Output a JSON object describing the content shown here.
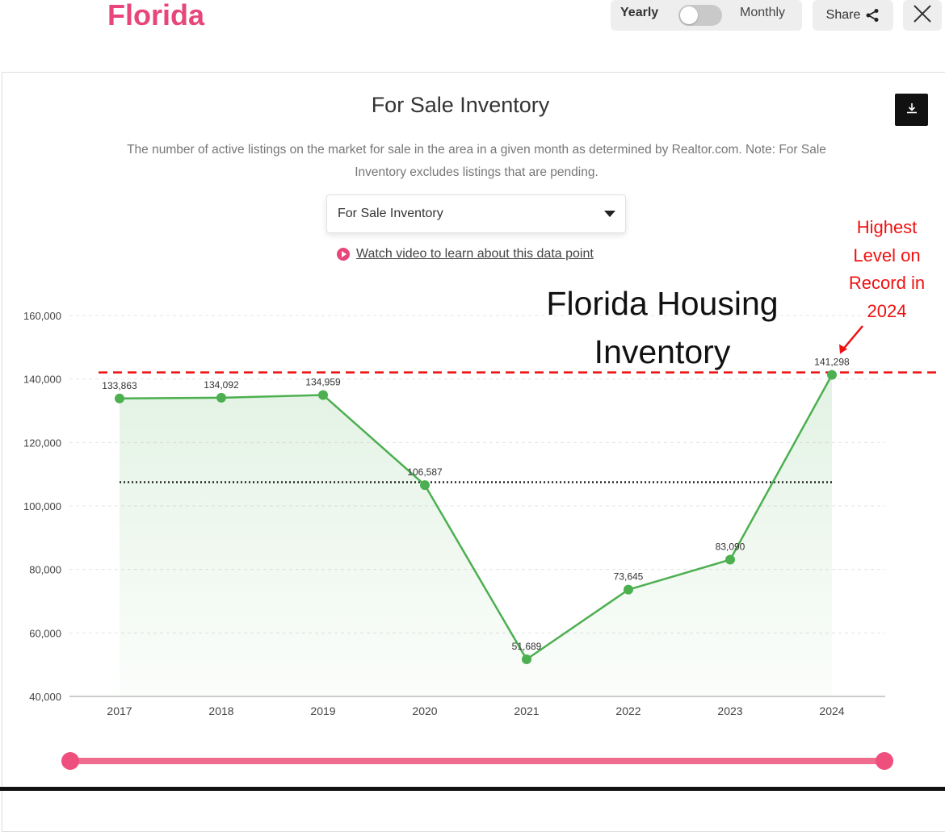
{
  "header": {
    "state_title": "Florida",
    "toggle_left": "Yearly",
    "toggle_right": "Monthly",
    "share_label": "Share"
  },
  "card": {
    "title": "For Sale Inventory",
    "description": "The number of active listings on the market for sale in the area in a given month as determined by Realtor.com. Note: For Sale Inventory excludes listings that are pending.",
    "select_value": "For Sale Inventory",
    "video_link": "Watch video to learn about this data point"
  },
  "annotations": {
    "overlay_title": "Florida Housing Inventory",
    "record_note": "Highest Level on Record in 2024"
  },
  "colors": {
    "brand": "#e8467a",
    "line": "#4caf50",
    "highlight": "#ee1111"
  },
  "chart_data": {
    "type": "line",
    "categories": [
      "2017",
      "2018",
      "2019",
      "2020",
      "2021",
      "2022",
      "2023",
      "2024"
    ],
    "values": [
      133863,
      134092,
      134959,
      106587,
      51689,
      73645,
      83090,
      141298
    ],
    "data_labels": [
      "133,863",
      "134,092",
      "134,959",
      "106,587",
      "51,689",
      "73,645",
      "83,090",
      "141,298"
    ],
    "ylim": [
      40000,
      160000
    ],
    "yticks": [
      40000,
      60000,
      80000,
      100000,
      120000,
      140000,
      160000
    ],
    "ytick_labels": [
      "40,000",
      "60,000",
      "80,000",
      "100,000",
      "120,000",
      "140,000",
      "160,000"
    ],
    "average_line": 107500,
    "record_line": 141298,
    "grid": true,
    "fill": "area"
  }
}
